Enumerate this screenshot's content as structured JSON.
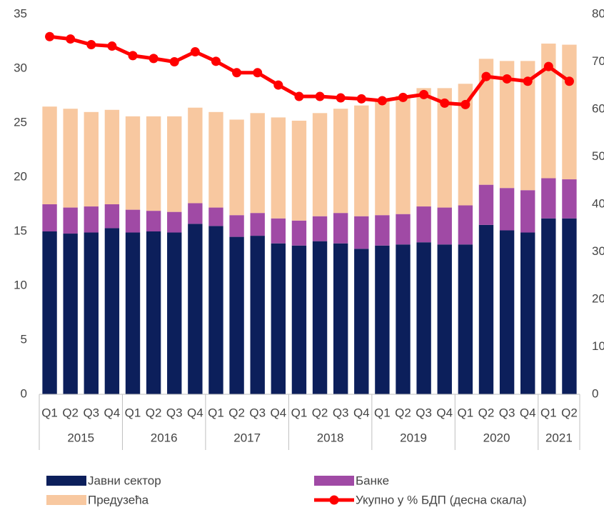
{
  "chart_data": {
    "type": "bar",
    "categories": [
      "Q1",
      "Q2",
      "Q3",
      "Q4",
      "Q1",
      "Q2",
      "Q3",
      "Q4",
      "Q1",
      "Q2",
      "Q3",
      "Q4",
      "Q1",
      "Q2",
      "Q3",
      "Q4",
      "Q1",
      "Q2",
      "Q3",
      "Q4",
      "Q1",
      "Q2",
      "Q3",
      "Q4",
      "Q1",
      "Q2"
    ],
    "year_labels": [
      "2015",
      null,
      null,
      null,
      "2016",
      null,
      null,
      null,
      "2017",
      null,
      null,
      null,
      "2018",
      null,
      null,
      null,
      "2019",
      null,
      null,
      null,
      "2020",
      null,
      null,
      null,
      "2021",
      null
    ],
    "series": [
      {
        "name": "Јавни сектор",
        "color": "#0c1f5b",
        "stack": true,
        "values": [
          15.0,
          14.8,
          14.9,
          15.3,
          14.9,
          15.0,
          14.9,
          15.7,
          15.5,
          14.5,
          14.6,
          13.9,
          13.7,
          14.1,
          13.9,
          13.4,
          13.7,
          13.8,
          14.0,
          13.8,
          13.8,
          15.6,
          15.1,
          14.9,
          16.2,
          16.2
        ]
      },
      {
        "name": "Банке",
        "color": "#a04aa5",
        "stack": true,
        "values": [
          2.5,
          2.4,
          2.4,
          2.2,
          2.1,
          1.9,
          1.9,
          1.9,
          1.7,
          2.0,
          2.1,
          2.3,
          2.3,
          2.3,
          2.8,
          3.0,
          2.8,
          2.8,
          3.3,
          3.4,
          3.6,
          3.7,
          3.9,
          3.9,
          3.7,
          3.6
        ]
      },
      {
        "name": "Предузећа",
        "color": "#f8c8a0",
        "stack": true,
        "values": [
          9.0,
          9.1,
          8.7,
          8.7,
          8.6,
          8.7,
          8.8,
          8.8,
          8.8,
          8.8,
          9.2,
          9.3,
          9.2,
          9.5,
          9.6,
          10.2,
          10.5,
          10.9,
          10.9,
          11.0,
          11.2,
          11.6,
          11.7,
          11.9,
          12.4,
          12.4
        ]
      },
      {
        "name": "Укупно у % БДП (десна скала)",
        "color": "#ff0000",
        "type": "line",
        "axis": "y2",
        "values": [
          75.3,
          74.8,
          73.6,
          73.3,
          71.3,
          70.7,
          70.0,
          72.1,
          70.1,
          67.7,
          67.7,
          65.1,
          62.7,
          62.7,
          62.4,
          62.2,
          61.8,
          62.5,
          63.1,
          61.3,
          61.0,
          66.9,
          66.4,
          65.9,
          69.0,
          65.9
        ]
      }
    ],
    "ylim": [
      0,
      35
    ],
    "yticks": [
      0,
      5,
      10,
      15,
      20,
      25,
      30,
      35
    ],
    "y2lim": [
      0,
      80
    ],
    "y2ticks": [
      0,
      10,
      20,
      30,
      40,
      50,
      60,
      70,
      80
    ],
    "grid": false,
    "legend": "bottom"
  }
}
